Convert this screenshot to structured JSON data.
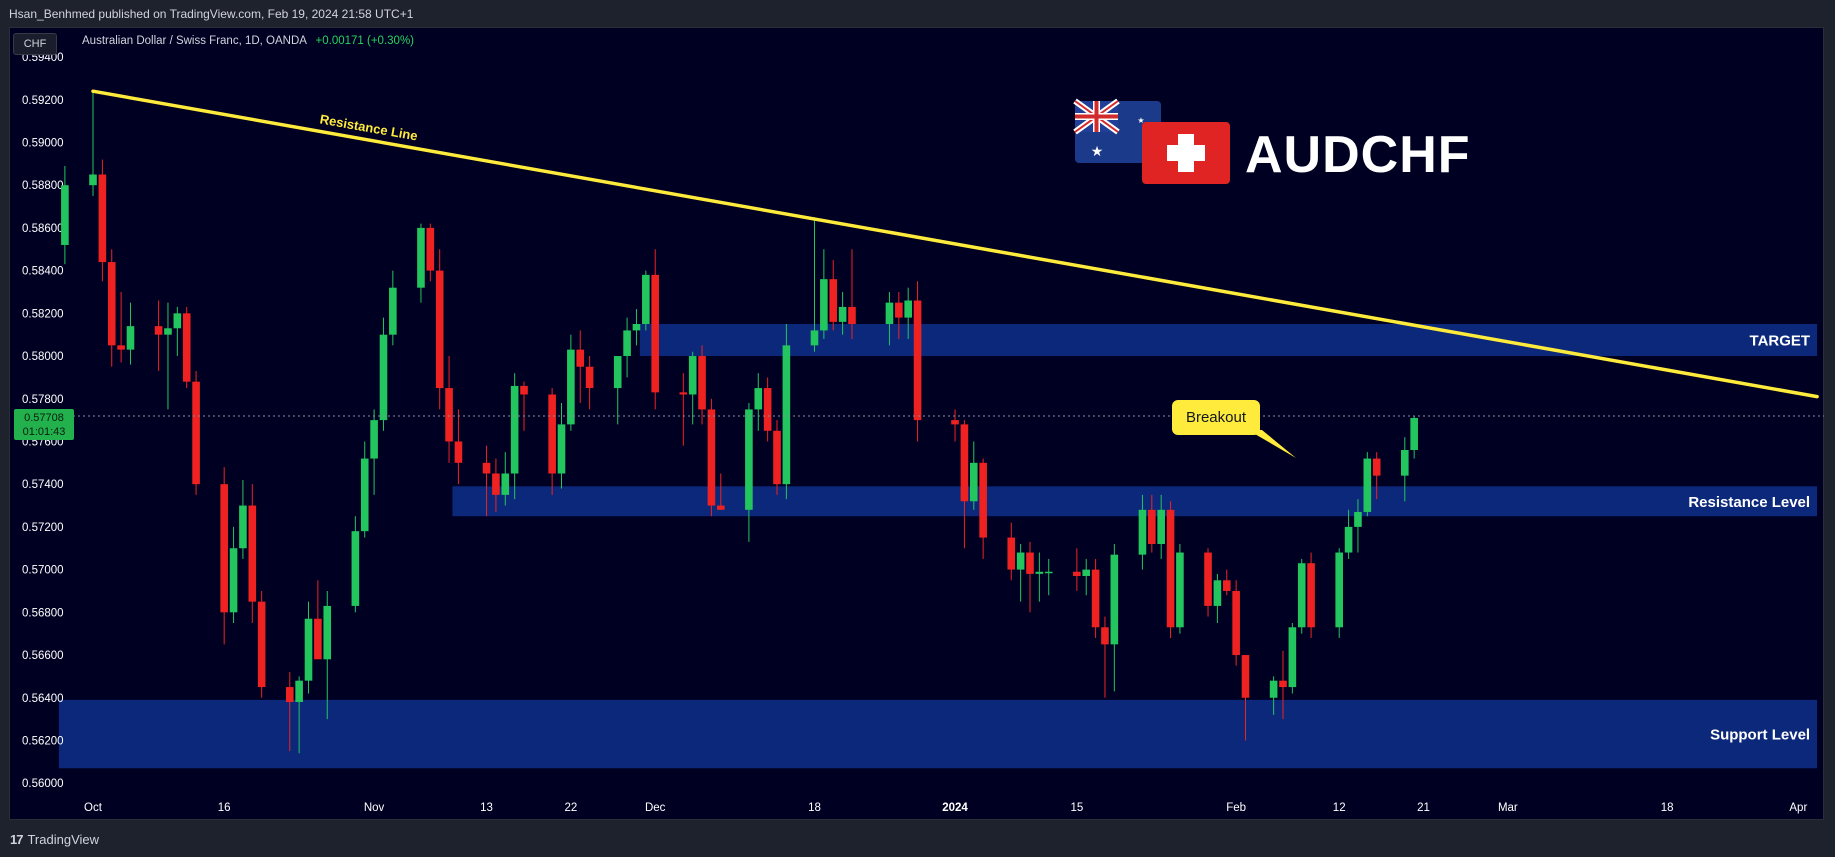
{
  "header": {
    "publisher_line": "Hsan_Benhmed published on TradingView.com, Feb 19, 2024 21:58 UTC+1"
  },
  "toolbar": {
    "currency_label": "CHF",
    "symbol_title": "Australian Dollar / Swiss Franc, 1D, OANDA",
    "change_text": "+0.00171 (+0.30%)"
  },
  "price_badge": {
    "price": "0.57708",
    "countdown": "01:01:43"
  },
  "footer": {
    "brand_mark": "17",
    "brand_name": "TradingView"
  },
  "overlay": {
    "symbol_logo_text": "AUDCHF",
    "breakout_label": "Breakout"
  },
  "colors": {
    "background": "#000022",
    "up_candle": "#22c55e",
    "down_candle": "#ef2222",
    "trendline": "#ffeb3b",
    "zone": "#0d2a80",
    "axis_text": "#ffffff"
  },
  "chart_data": {
    "type": "candlestick",
    "symbol": "AUDCHF",
    "interval": "1D",
    "ylim": [
      0.5594,
      0.5955
    ],
    "y_ticks": [
      "0.59400",
      "0.59200",
      "0.59000",
      "0.58800",
      "0.58600",
      "0.58400",
      "0.58200",
      "0.58000",
      "0.57800",
      "0.57600",
      "0.57400",
      "0.57200",
      "0.57000",
      "0.56800",
      "0.56600",
      "0.56400",
      "0.56200",
      "0.56000"
    ],
    "x_ticks": [
      {
        "label": "Oct",
        "date": "2023-10-02",
        "bold": false
      },
      {
        "label": "16",
        "date": "2023-10-16",
        "bold": false
      },
      {
        "label": "Nov",
        "date": "2023-11-01",
        "bold": false
      },
      {
        "label": "13",
        "date": "2023-11-13",
        "bold": false
      },
      {
        "label": "22",
        "date": "2023-11-22",
        "bold": false
      },
      {
        "label": "Dec",
        "date": "2023-12-01",
        "bold": false
      },
      {
        "label": "18",
        "date": "2023-12-18",
        "bold": false
      },
      {
        "label": "2024",
        "date": "2024-01-02",
        "bold": true
      },
      {
        "label": "15",
        "date": "2024-01-15",
        "bold": false
      },
      {
        "label": "Feb",
        "date": "2024-02-01",
        "bold": false
      },
      {
        "label": "12",
        "date": "2024-02-12",
        "bold": false
      },
      {
        "label": "21",
        "date": "2024-02-21",
        "bold": false
      },
      {
        "label": "Mar",
        "date": "2024-03-01",
        "bold": false
      },
      {
        "label": "18",
        "date": "2024-03-18",
        "bold": false
      },
      {
        "label": "Apr",
        "date": "2024-04-01",
        "bold": false
      }
    ],
    "last_price": 0.57708,
    "candles": [
      {
        "date": "2023-09-29",
        "o": 0.5852,
        "h": 0.5889,
        "l": 0.5843,
        "c": 0.588
      },
      {
        "date": "2023-10-02",
        "o": 0.588,
        "h": 0.5924,
        "l": 0.5875,
        "c": 0.5885
      },
      {
        "date": "2023-10-03",
        "o": 0.5885,
        "h": 0.5892,
        "l": 0.5835,
        "c": 0.5844
      },
      {
        "date": "2023-10-04",
        "o": 0.5844,
        "h": 0.585,
        "l": 0.5795,
        "c": 0.5805
      },
      {
        "date": "2023-10-05",
        "o": 0.5805,
        "h": 0.583,
        "l": 0.5797,
        "c": 0.5803
      },
      {
        "date": "2023-10-06",
        "o": 0.5803,
        "h": 0.5825,
        "l": 0.5796,
        "c": 0.5814
      },
      {
        "date": "2023-10-09",
        "o": 0.5814,
        "h": 0.5826,
        "l": 0.5793,
        "c": 0.581
      },
      {
        "date": "2023-10-10",
        "o": 0.581,
        "h": 0.5825,
        "l": 0.5775,
        "c": 0.5813
      },
      {
        "date": "2023-10-11",
        "o": 0.5813,
        "h": 0.5823,
        "l": 0.58,
        "c": 0.582
      },
      {
        "date": "2023-10-12",
        "o": 0.582,
        "h": 0.5823,
        "l": 0.5785,
        "c": 0.5788
      },
      {
        "date": "2023-10-13",
        "o": 0.5788,
        "h": 0.5793,
        "l": 0.5735,
        "c": 0.574
      },
      {
        "date": "2023-10-16",
        "o": 0.574,
        "h": 0.5748,
        "l": 0.5665,
        "c": 0.568
      },
      {
        "date": "2023-10-17",
        "o": 0.568,
        "h": 0.572,
        "l": 0.5675,
        "c": 0.571
      },
      {
        "date": "2023-10-18",
        "o": 0.571,
        "h": 0.5742,
        "l": 0.5705,
        "c": 0.573
      },
      {
        "date": "2023-10-19",
        "o": 0.573,
        "h": 0.574,
        "l": 0.5675,
        "c": 0.5685
      },
      {
        "date": "2023-10-20",
        "o": 0.5685,
        "h": 0.569,
        "l": 0.564,
        "c": 0.5645
      },
      {
        "date": "2023-10-23",
        "o": 0.5645,
        "h": 0.5652,
        "l": 0.5615,
        "c": 0.5638
      },
      {
        "date": "2023-10-24",
        "o": 0.5638,
        "h": 0.565,
        "l": 0.5614,
        "c": 0.5648
      },
      {
        "date": "2023-10-25",
        "o": 0.5648,
        "h": 0.5685,
        "l": 0.5642,
        "c": 0.5677
      },
      {
        "date": "2023-10-26",
        "o": 0.5677,
        "h": 0.5695,
        "l": 0.566,
        "c": 0.5658
      },
      {
        "date": "2023-10-27",
        "o": 0.5658,
        "h": 0.569,
        "l": 0.563,
        "c": 0.5683
      },
      {
        "date": "2023-10-30",
        "o": 0.5683,
        "h": 0.5725,
        "l": 0.568,
        "c": 0.5718
      },
      {
        "date": "2023-10-31",
        "o": 0.5718,
        "h": 0.576,
        "l": 0.5715,
        "c": 0.5752
      },
      {
        "date": "2023-11-01",
        "o": 0.5752,
        "h": 0.5775,
        "l": 0.5735,
        "c": 0.577
      },
      {
        "date": "2023-11-02",
        "o": 0.577,
        "h": 0.5818,
        "l": 0.5765,
        "c": 0.581
      },
      {
        "date": "2023-11-03",
        "o": 0.581,
        "h": 0.584,
        "l": 0.5805,
        "c": 0.5832
      },
      {
        "date": "2023-11-06",
        "o": 0.5832,
        "h": 0.5862,
        "l": 0.5825,
        "c": 0.586
      },
      {
        "date": "2023-11-07",
        "o": 0.586,
        "h": 0.5862,
        "l": 0.5835,
        "c": 0.584
      },
      {
        "date": "2023-11-08",
        "o": 0.584,
        "h": 0.585,
        "l": 0.5775,
        "c": 0.5785
      },
      {
        "date": "2023-11-09",
        "o": 0.5785,
        "h": 0.58,
        "l": 0.575,
        "c": 0.576
      },
      {
        "date": "2023-11-10",
        "o": 0.576,
        "h": 0.5775,
        "l": 0.574,
        "c": 0.575
      },
      {
        "date": "2023-11-13",
        "o": 0.575,
        "h": 0.5758,
        "l": 0.5725,
        "c": 0.5745
      },
      {
        "date": "2023-11-14",
        "o": 0.5745,
        "h": 0.5752,
        "l": 0.5727,
        "c": 0.5735
      },
      {
        "date": "2023-11-15",
        "o": 0.5735,
        "h": 0.5755,
        "l": 0.573,
        "c": 0.5745
      },
      {
        "date": "2023-11-16",
        "o": 0.5745,
        "h": 0.5792,
        "l": 0.5733,
        "c": 0.5786
      },
      {
        "date": "2023-11-17",
        "o": 0.5786,
        "h": 0.5788,
        "l": 0.5765,
        "c": 0.5782
      },
      {
        "date": "2023-11-20",
        "o": 0.5782,
        "h": 0.5785,
        "l": 0.5735,
        "c": 0.5745
      },
      {
        "date": "2023-11-21",
        "o": 0.5745,
        "h": 0.5778,
        "l": 0.5738,
        "c": 0.5768
      },
      {
        "date": "2023-11-22",
        "o": 0.5768,
        "h": 0.581,
        "l": 0.5765,
        "c": 0.5803
      },
      {
        "date": "2023-11-23",
        "o": 0.5803,
        "h": 0.5812,
        "l": 0.5778,
        "c": 0.5795
      },
      {
        "date": "2023-11-24",
        "o": 0.5795,
        "h": 0.58,
        "l": 0.5775,
        "c": 0.5785
      },
      {
        "date": "2023-11-27",
        "o": 0.5785,
        "h": 0.58,
        "l": 0.5768,
        "c": 0.58
      },
      {
        "date": "2023-11-28",
        "o": 0.58,
        "h": 0.5818,
        "l": 0.579,
        "c": 0.5812
      },
      {
        "date": "2023-11-29",
        "o": 0.5812,
        "h": 0.5822,
        "l": 0.5805,
        "c": 0.5815
      },
      {
        "date": "2023-11-30",
        "o": 0.5815,
        "h": 0.584,
        "l": 0.5812,
        "c": 0.5838
      },
      {
        "date": "2023-12-01",
        "o": 0.5838,
        "h": 0.585,
        "l": 0.5775,
        "c": 0.5783
      },
      {
        "date": "2023-12-04",
        "o": 0.5783,
        "h": 0.5792,
        "l": 0.5758,
        "c": 0.5782
      },
      {
        "date": "2023-12-05",
        "o": 0.5782,
        "h": 0.5802,
        "l": 0.5768,
        "c": 0.58
      },
      {
        "date": "2023-12-06",
        "o": 0.58,
        "h": 0.5805,
        "l": 0.5768,
        "c": 0.5775
      },
      {
        "date": "2023-12-07",
        "o": 0.5775,
        "h": 0.578,
        "l": 0.5725,
        "c": 0.573
      },
      {
        "date": "2023-12-08",
        "o": 0.573,
        "h": 0.5745,
        "l": 0.5728,
        "c": 0.5728
      },
      {
        "date": "2023-12-11",
        "o": 0.5728,
        "h": 0.5778,
        "l": 0.5713,
        "c": 0.5775
      },
      {
        "date": "2023-12-12",
        "o": 0.5775,
        "h": 0.5792,
        "l": 0.5765,
        "c": 0.5785
      },
      {
        "date": "2023-12-13",
        "o": 0.5785,
        "h": 0.579,
        "l": 0.576,
        "c": 0.5765
      },
      {
        "date": "2023-12-14",
        "o": 0.5765,
        "h": 0.577,
        "l": 0.5735,
        "c": 0.574
      },
      {
        "date": "2023-12-15",
        "o": 0.574,
        "h": 0.5815,
        "l": 0.5733,
        "c": 0.5805
      },
      {
        "date": "2023-12-18",
        "o": 0.5805,
        "h": 0.5865,
        "l": 0.5802,
        "c": 0.5812
      },
      {
        "date": "2023-12-19",
        "o": 0.5812,
        "h": 0.585,
        "l": 0.5808,
        "c": 0.5836
      },
      {
        "date": "2023-12-20",
        "o": 0.5836,
        "h": 0.5845,
        "l": 0.5812,
        "c": 0.5816
      },
      {
        "date": "2023-12-21",
        "o": 0.5816,
        "h": 0.583,
        "l": 0.581,
        "c": 0.5823
      },
      {
        "date": "2023-12-22",
        "o": 0.5823,
        "h": 0.585,
        "l": 0.5808,
        "c": 0.5815
      },
      {
        "date": "2023-12-26",
        "o": 0.5815,
        "h": 0.583,
        "l": 0.5805,
        "c": 0.5825
      },
      {
        "date": "2023-12-27",
        "o": 0.5825,
        "h": 0.583,
        "l": 0.5808,
        "c": 0.5818
      },
      {
        "date": "2023-12-28",
        "o": 0.5818,
        "h": 0.5832,
        "l": 0.5808,
        "c": 0.5826
      },
      {
        "date": "2023-12-29",
        "o": 0.5826,
        "h": 0.5835,
        "l": 0.576,
        "c": 0.577
      },
      {
        "date": "2024-01-02",
        "o": 0.577,
        "h": 0.5775,
        "l": 0.576,
        "c": 0.5768
      },
      {
        "date": "2024-01-03",
        "o": 0.5768,
        "h": 0.577,
        "l": 0.571,
        "c": 0.5732
      },
      {
        "date": "2024-01-04",
        "o": 0.5732,
        "h": 0.576,
        "l": 0.5728,
        "c": 0.575
      },
      {
        "date": "2024-01-05",
        "o": 0.575,
        "h": 0.5752,
        "l": 0.5705,
        "c": 0.5715
      },
      {
        "date": "2024-01-08",
        "o": 0.5715,
        "h": 0.5722,
        "l": 0.5695,
        "c": 0.57
      },
      {
        "date": "2024-01-09",
        "o": 0.57,
        "h": 0.5712,
        "l": 0.5685,
        "c": 0.5708
      },
      {
        "date": "2024-01-10",
        "o": 0.5708,
        "h": 0.5713,
        "l": 0.568,
        "c": 0.5698
      },
      {
        "date": "2024-01-11",
        "o": 0.5698,
        "h": 0.5708,
        "l": 0.5685,
        "c": 0.5699
      },
      {
        "date": "2024-01-12",
        "o": 0.5699,
        "h": 0.5705,
        "l": 0.5688,
        "c": 0.5699
      },
      {
        "date": "2024-01-15",
        "o": 0.5699,
        "h": 0.571,
        "l": 0.569,
        "c": 0.5697
      },
      {
        "date": "2024-01-16",
        "o": 0.5697,
        "h": 0.5705,
        "l": 0.5688,
        "c": 0.57
      },
      {
        "date": "2024-01-17",
        "o": 0.57,
        "h": 0.5705,
        "l": 0.5668,
        "c": 0.5673
      },
      {
        "date": "2024-01-18",
        "o": 0.5673,
        "h": 0.5678,
        "l": 0.564,
        "c": 0.5665
      },
      {
        "date": "2024-01-19",
        "o": 0.5665,
        "h": 0.5712,
        "l": 0.5643,
        "c": 0.5707
      },
      {
        "date": "2024-01-22",
        "o": 0.5707,
        "h": 0.5735,
        "l": 0.57,
        "c": 0.5728
      },
      {
        "date": "2024-01-23",
        "o": 0.5728,
        "h": 0.5735,
        "l": 0.5708,
        "c": 0.5712
      },
      {
        "date": "2024-01-24",
        "o": 0.5712,
        "h": 0.5735,
        "l": 0.5705,
        "c": 0.5728
      },
      {
        "date": "2024-01-25",
        "o": 0.5728,
        "h": 0.5732,
        "l": 0.5668,
        "c": 0.5673
      },
      {
        "date": "2024-01-26",
        "o": 0.5673,
        "h": 0.5712,
        "l": 0.567,
        "c": 0.5708
      },
      {
        "date": "2024-01-29",
        "o": 0.5708,
        "h": 0.571,
        "l": 0.5678,
        "c": 0.5683
      },
      {
        "date": "2024-01-30",
        "o": 0.5683,
        "h": 0.5698,
        "l": 0.5675,
        "c": 0.5695
      },
      {
        "date": "2024-01-31",
        "o": 0.5695,
        "h": 0.57,
        "l": 0.5688,
        "c": 0.569
      },
      {
        "date": "2024-02-01",
        "o": 0.569,
        "h": 0.5695,
        "l": 0.5655,
        "c": 0.566
      },
      {
        "date": "2024-02-02",
        "o": 0.566,
        "h": 0.566,
        "l": 0.562,
        "c": 0.564
      },
      {
        "date": "2024-02-05",
        "o": 0.564,
        "h": 0.565,
        "l": 0.5632,
        "c": 0.5648
      },
      {
        "date": "2024-02-06",
        "o": 0.5648,
        "h": 0.5662,
        "l": 0.563,
        "c": 0.5645
      },
      {
        "date": "2024-02-07",
        "o": 0.5645,
        "h": 0.5675,
        "l": 0.5642,
        "c": 0.5673
      },
      {
        "date": "2024-02-08",
        "o": 0.5673,
        "h": 0.5705,
        "l": 0.567,
        "c": 0.5703
      },
      {
        "date": "2024-02-09",
        "o": 0.5703,
        "h": 0.5708,
        "l": 0.5668,
        "c": 0.5673
      },
      {
        "date": "2024-02-12",
        "o": 0.5673,
        "h": 0.571,
        "l": 0.5668,
        "c": 0.5708
      },
      {
        "date": "2024-02-13",
        "o": 0.5708,
        "h": 0.5728,
        "l": 0.5705,
        "c": 0.572
      },
      {
        "date": "2024-02-14",
        "o": 0.572,
        "h": 0.5733,
        "l": 0.5708,
        "c": 0.5727
      },
      {
        "date": "2024-02-15",
        "o": 0.5727,
        "h": 0.5755,
        "l": 0.5725,
        "c": 0.5752
      },
      {
        "date": "2024-02-16",
        "o": 0.5752,
        "h": 0.5755,
        "l": 0.5733,
        "c": 0.5744
      },
      {
        "date": "2024-02-19",
        "o": 0.5744,
        "h": 0.5762,
        "l": 0.5732,
        "c": 0.5756
      },
      {
        "date": "2024-02-20",
        "o": 0.5756,
        "h": 0.5772,
        "l": 0.5752,
        "c": 0.5771
      }
    ],
    "zones": [
      {
        "label": "TARGET",
        "from_date": "2023-11-30",
        "to_date": "2024-04-03",
        "low": 0.58,
        "high": 0.5815
      },
      {
        "label": "Resistance Level",
        "from_date": "2023-11-10",
        "to_date": "2024-04-03",
        "low": 0.5725,
        "high": 0.5739
      },
      {
        "label": "Support Level",
        "from_date": "2023-09-29",
        "to_date": "2024-04-03",
        "low": 0.5607,
        "high": 0.5639
      }
    ],
    "trendline": {
      "label": "Resistance Line",
      "from": {
        "date": "2023-10-02",
        "price": 0.5924
      },
      "to": {
        "date": "2024-04-03",
        "price": 0.5781
      }
    }
  }
}
